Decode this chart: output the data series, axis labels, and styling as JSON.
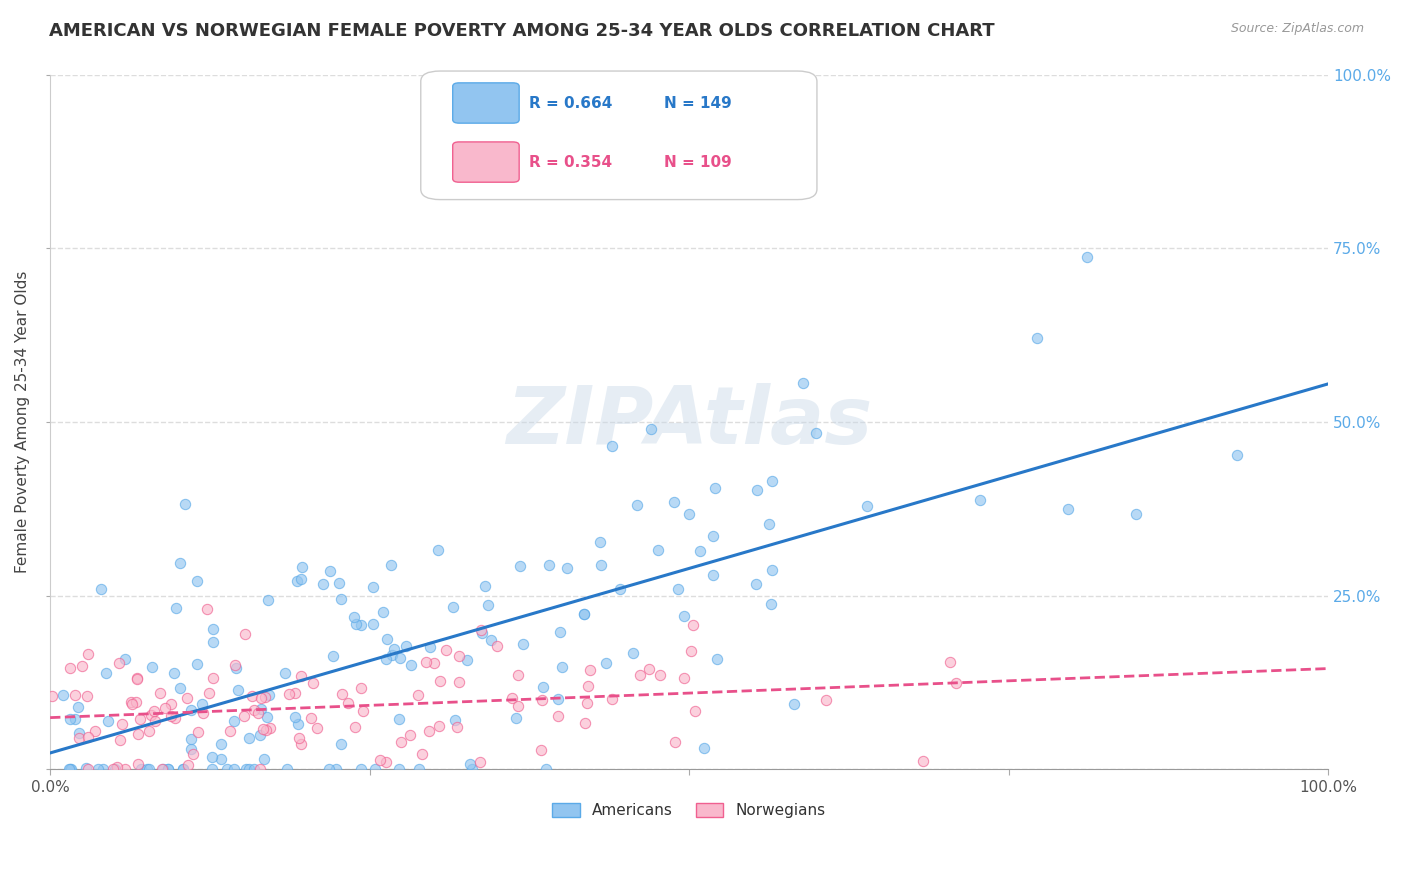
{
  "title": "AMERICAN VS NORWEGIAN FEMALE POVERTY AMONG 25-34 YEAR OLDS CORRELATION CHART",
  "source": "Source: ZipAtlas.com",
  "ylabel": "Female Poverty Among 25-34 Year Olds",
  "xlim": [
    0,
    1.0
  ],
  "ylim": [
    0,
    1.0
  ],
  "xticks": [
    0.0,
    0.25,
    0.5,
    0.75,
    1.0
  ],
  "yticks": [
    0.0,
    0.25,
    0.5,
    0.75,
    1.0
  ],
  "xticklabels_bottom": [
    "0.0%",
    "",
    "",
    "",
    "100.0%"
  ],
  "yticklabels_left": [
    "",
    "",
    "",
    "",
    ""
  ],
  "right_yticklabels": [
    "",
    "25.0%",
    "50.0%",
    "75.0%",
    "100.0%"
  ],
  "american_color": "#92c5f0",
  "norwegian_color": "#f9b8cc",
  "american_edge_color": "#5baae8",
  "norwegian_edge_color": "#f06090",
  "american_R": 0.664,
  "american_N": 149,
  "norwegian_R": 0.354,
  "norwegian_N": 109,
  "legend_entries": [
    "Americans",
    "Norwegians"
  ],
  "watermark": "ZIPAtlas",
  "background_color": "#ffffff",
  "grid_color": "#dddddd",
  "american_line_color": "#2878c8",
  "norwegian_line_color": "#e8508a",
  "right_tick_color": "#5baae8",
  "title_fontsize": 13,
  "label_fontsize": 11,
  "scatter_size": 55,
  "scatter_alpha": 0.65
}
